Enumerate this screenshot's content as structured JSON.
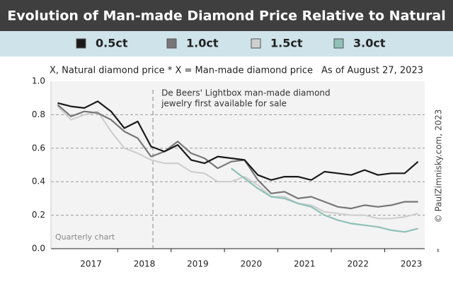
{
  "chart_data": {
    "type": "line",
    "title": "Evolution of Man-made Diamond Price Relative to Natural",
    "subtitle": "X, Natural diamond price * X = Man-made diamond price",
    "date_note": "As of August 27, 2023",
    "annotation": [
      "De Beers' Lightbox man-made diamond",
      "jewelry first available for sale"
    ],
    "annotation_x": 2018.66,
    "footnote": "Quarterly chart",
    "credit": "© PaulZimnisky.com, 2023",
    "x": [
      2016.875,
      2017.125,
      2017.375,
      2017.625,
      2017.875,
      2018.125,
      2018.375,
      2018.625,
      2018.875,
      2019.125,
      2019.375,
      2019.625,
      2019.875,
      2020.125,
      2020.375,
      2020.625,
      2020.875,
      2021.125,
      2021.375,
      2021.625,
      2021.875,
      2022.125,
      2022.375,
      2022.625,
      2022.875,
      2023.125,
      2023.375,
      2023.625
    ],
    "series": [
      {
        "name": "0.5ct",
        "color": "#1a1a1a",
        "values": [
          0.87,
          0.85,
          0.84,
          0.88,
          0.82,
          0.72,
          0.76,
          0.61,
          0.58,
          0.62,
          0.53,
          0.51,
          0.55,
          0.54,
          0.53,
          0.44,
          0.41,
          0.43,
          0.43,
          0.41,
          0.46,
          0.45,
          0.44,
          0.47,
          0.44,
          0.45,
          0.45,
          0.52
        ]
      },
      {
        "name": "1.0ct",
        "color": "#777777",
        "values": [
          0.86,
          0.79,
          0.82,
          0.81,
          0.77,
          0.7,
          0.66,
          0.55,
          0.58,
          0.64,
          0.57,
          0.54,
          0.48,
          0.52,
          0.53,
          0.41,
          0.33,
          0.34,
          0.3,
          0.31,
          0.28,
          0.25,
          0.24,
          0.26,
          0.25,
          0.26,
          0.28,
          0.28
        ]
      },
      {
        "name": "1.5ct",
        "color": "#cfcfcf",
        "values": [
          0.85,
          0.77,
          0.8,
          0.82,
          0.7,
          0.6,
          0.57,
          0.53,
          0.51,
          0.51,
          0.46,
          0.45,
          0.4,
          0.4,
          0.43,
          0.38,
          0.31,
          0.31,
          0.27,
          0.26,
          0.22,
          0.21,
          0.2,
          0.2,
          0.18,
          0.18,
          0.19,
          0.21
        ]
      },
      {
        "name": "3.0ct",
        "color": "#8fc1b6",
        "values": [
          null,
          null,
          null,
          null,
          null,
          null,
          null,
          null,
          null,
          null,
          null,
          null,
          null,
          0.48,
          0.42,
          0.36,
          0.31,
          0.3,
          0.27,
          0.25,
          0.2,
          0.17,
          0.15,
          0.14,
          0.13,
          0.11,
          0.1,
          0.12
        ]
      }
    ],
    "xlim": [
      2016.75,
      2023.75
    ],
    "xticks": [
      {
        "value": 2017.5,
        "label": "2017"
      },
      {
        "value": 2018.5,
        "label": "2018"
      },
      {
        "value": 2019.5,
        "label": "2019"
      },
      {
        "value": 2020.5,
        "label": "2020"
      },
      {
        "value": 2021.5,
        "label": "2021"
      },
      {
        "value": 2022.5,
        "label": "2022"
      },
      {
        "value": 2023.5,
        "label": "2023"
      }
    ],
    "ylim": [
      0,
      1
    ],
    "yticks": [
      {
        "value": 0,
        "label": "0.0"
      },
      0.2,
      0.4,
      0.6,
      0.8,
      {
        "value": 1,
        "label": "1.0"
      }
    ],
    "grid": true
  }
}
